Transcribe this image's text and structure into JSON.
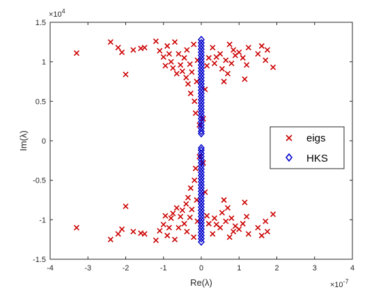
{
  "chart_data": {
    "type": "scatter",
    "xlabel": "Re(λ)",
    "ylabel": "Im(λ)",
    "x_exponent_label": "×10",
    "x_exponent_power": "-7",
    "y_exponent_label": "×10",
    "y_exponent_power": "4",
    "xlim": [
      -4,
      4
    ],
    "ylim": [
      -1.5,
      1.5
    ],
    "x_ticks": [
      -4,
      -3,
      -2,
      -1,
      0,
      1,
      2,
      3,
      4
    ],
    "x_tick_labels": [
      "-4",
      "-3",
      "-2",
      "-1",
      "0",
      "1",
      "2",
      "3",
      "4"
    ],
    "y_ticks": [
      -1.5,
      -1,
      -0.5,
      0,
      0.5,
      1,
      1.5
    ],
    "y_tick_labels": [
      "-1.5",
      "-1",
      "-0.5",
      "0",
      "0.5",
      "1",
      "1.5"
    ],
    "grid": false,
    "legend_position": "right-center",
    "series": [
      {
        "name": "eigs",
        "marker": "x",
        "color": "#cc0000",
        "points": [
          [
            -3.3,
            1.11
          ],
          [
            -2.4,
            1.25
          ],
          [
            -2.2,
            1.18
          ],
          [
            -2.1,
            1.12
          ],
          [
            -2.0,
            0.84
          ],
          [
            -1.8,
            1.15
          ],
          [
            -1.6,
            1.17
          ],
          [
            -1.5,
            1.18
          ],
          [
            -1.2,
            1.26
          ],
          [
            -1.1,
            1.14
          ],
          [
            -1.0,
            1.06
          ],
          [
            -0.9,
            1.2
          ],
          [
            -0.95,
            0.95
          ],
          [
            -0.85,
            1.1
          ],
          [
            -0.8,
            1.0
          ],
          [
            -0.75,
            0.92
          ],
          [
            -0.7,
            1.25
          ],
          [
            -0.65,
            0.85
          ],
          [
            -0.6,
            1.1
          ],
          [
            -0.55,
            0.96
          ],
          [
            -0.5,
            0.88
          ],
          [
            -0.45,
            1.05
          ],
          [
            -0.4,
            0.8
          ],
          [
            -0.38,
            1.15
          ],
          [
            -0.35,
            0.72
          ],
          [
            -0.3,
            0.97
          ],
          [
            -0.28,
            0.6
          ],
          [
            -0.25,
            0.87
          ],
          [
            -0.2,
            1.22
          ],
          [
            -0.18,
            0.5
          ],
          [
            -0.15,
            0.35
          ],
          [
            -0.12,
            0.75
          ],
          [
            -0.1,
            1.02
          ],
          [
            -0.05,
            0.2
          ],
          [
            0.05,
            0.28
          ],
          [
            0.1,
            0.65
          ],
          [
            0.15,
            0.95
          ],
          [
            0.2,
            1.05
          ],
          [
            0.3,
            1.18
          ],
          [
            0.35,
            0.98
          ],
          [
            0.4,
            1.06
          ],
          [
            0.5,
            1.1
          ],
          [
            0.55,
            0.91
          ],
          [
            0.6,
            0.75
          ],
          [
            0.65,
            1.02
          ],
          [
            0.7,
            0.85
          ],
          [
            0.75,
            1.22
          ],
          [
            0.8,
            0.98
          ],
          [
            0.85,
            1.15
          ],
          [
            0.9,
            1.08
          ],
          [
            1.0,
            1.12
          ],
          [
            1.1,
            1.05
          ],
          [
            1.15,
            0.78
          ],
          [
            1.2,
            0.96
          ],
          [
            1.25,
            1.18
          ],
          [
            1.5,
            1.1
          ],
          [
            1.6,
            1.2
          ],
          [
            1.7,
            1.02
          ],
          [
            1.75,
            1.15
          ],
          [
            1.9,
            0.93
          ],
          [
            -3.3,
            -1.1
          ],
          [
            -2.4,
            -1.25
          ],
          [
            -2.2,
            -1.18
          ],
          [
            -2.1,
            -1.12
          ],
          [
            -2.0,
            -0.83
          ],
          [
            -1.8,
            -1.15
          ],
          [
            -1.6,
            -1.17
          ],
          [
            -1.5,
            -1.18
          ],
          [
            -1.2,
            -1.26
          ],
          [
            -1.1,
            -1.14
          ],
          [
            -1.0,
            -1.06
          ],
          [
            -0.9,
            -1.2
          ],
          [
            -0.95,
            -0.95
          ],
          [
            -0.85,
            -1.1
          ],
          [
            -0.8,
            -0.98
          ],
          [
            -0.75,
            -0.92
          ],
          [
            -0.7,
            -1.25
          ],
          [
            -0.65,
            -0.85
          ],
          [
            -0.6,
            -1.1
          ],
          [
            -0.55,
            -0.96
          ],
          [
            -0.5,
            -0.88
          ],
          [
            -0.45,
            -1.05
          ],
          [
            -0.4,
            -0.8
          ],
          [
            -0.38,
            -1.15
          ],
          [
            -0.35,
            -0.72
          ],
          [
            -0.3,
            -0.97
          ],
          [
            -0.28,
            -0.6
          ],
          [
            -0.25,
            -0.87
          ],
          [
            -0.2,
            -1.22
          ],
          [
            -0.18,
            -0.5
          ],
          [
            -0.15,
            -0.35
          ],
          [
            -0.12,
            -0.75
          ],
          [
            -0.1,
            -1.02
          ],
          [
            -0.05,
            -0.2
          ],
          [
            0.05,
            -0.28
          ],
          [
            0.1,
            -0.65
          ],
          [
            0.15,
            -0.95
          ],
          [
            0.2,
            -1.05
          ],
          [
            0.3,
            -1.18
          ],
          [
            0.35,
            -0.98
          ],
          [
            0.4,
            -1.06
          ],
          [
            0.5,
            -1.1
          ],
          [
            0.55,
            -0.91
          ],
          [
            0.6,
            -0.75
          ],
          [
            0.65,
            -1.02
          ],
          [
            0.7,
            -0.85
          ],
          [
            0.75,
            -1.22
          ],
          [
            0.8,
            -0.98
          ],
          [
            0.85,
            -1.15
          ],
          [
            0.9,
            -1.08
          ],
          [
            1.0,
            -1.12
          ],
          [
            1.1,
            -1.05
          ],
          [
            1.15,
            -0.78
          ],
          [
            1.2,
            -0.96
          ],
          [
            1.25,
            -1.18
          ],
          [
            1.5,
            -1.1
          ],
          [
            1.6,
            -1.2
          ],
          [
            1.7,
            -1.02
          ],
          [
            1.75,
            -1.15
          ],
          [
            1.9,
            -0.93
          ]
        ]
      },
      {
        "name": "HKS",
        "marker": "diamond",
        "color": "#0000cc",
        "points": [
          [
            0,
            1.28
          ],
          [
            0,
            1.24
          ],
          [
            0,
            1.2
          ],
          [
            0,
            1.16
          ],
          [
            0,
            1.12
          ],
          [
            0,
            1.08
          ],
          [
            0,
            1.04
          ],
          [
            0,
            1.0
          ],
          [
            0,
            0.96
          ],
          [
            0,
            0.92
          ],
          [
            0,
            0.88
          ],
          [
            0,
            0.84
          ],
          [
            0,
            0.8
          ],
          [
            0,
            0.76
          ],
          [
            0,
            0.72
          ],
          [
            0,
            0.68
          ],
          [
            0,
            0.64
          ],
          [
            0,
            0.6
          ],
          [
            0,
            0.56
          ],
          [
            0,
            0.52
          ],
          [
            0,
            0.48
          ],
          [
            0,
            0.44
          ],
          [
            0,
            0.4
          ],
          [
            0,
            0.36
          ],
          [
            0,
            0.32
          ],
          [
            0,
            0.28
          ],
          [
            0,
            0.24
          ],
          [
            0,
            0.2
          ],
          [
            0,
            0.16
          ],
          [
            0,
            0.12
          ],
          [
            0,
            0.09
          ],
          [
            0,
            -0.09
          ],
          [
            0,
            -0.12
          ],
          [
            0,
            -0.16
          ],
          [
            0,
            -0.2
          ],
          [
            0,
            -0.24
          ],
          [
            0,
            -0.28
          ],
          [
            0,
            -0.32
          ],
          [
            0,
            -0.36
          ],
          [
            0,
            -0.4
          ],
          [
            0,
            -0.44
          ],
          [
            0,
            -0.48
          ],
          [
            0,
            -0.52
          ],
          [
            0,
            -0.56
          ],
          [
            0,
            -0.6
          ],
          [
            0,
            -0.64
          ],
          [
            0,
            -0.68
          ],
          [
            0,
            -0.72
          ],
          [
            0,
            -0.76
          ],
          [
            0,
            -0.8
          ],
          [
            0,
            -0.84
          ],
          [
            0,
            -0.88
          ],
          [
            0,
            -0.92
          ],
          [
            0,
            -0.96
          ],
          [
            0,
            -1.0
          ],
          [
            0,
            -1.04
          ],
          [
            0,
            -1.08
          ],
          [
            0,
            -1.12
          ],
          [
            0,
            -1.16
          ],
          [
            0,
            -1.2
          ],
          [
            0,
            -1.24
          ],
          [
            0,
            -1.28
          ]
        ]
      }
    ]
  }
}
